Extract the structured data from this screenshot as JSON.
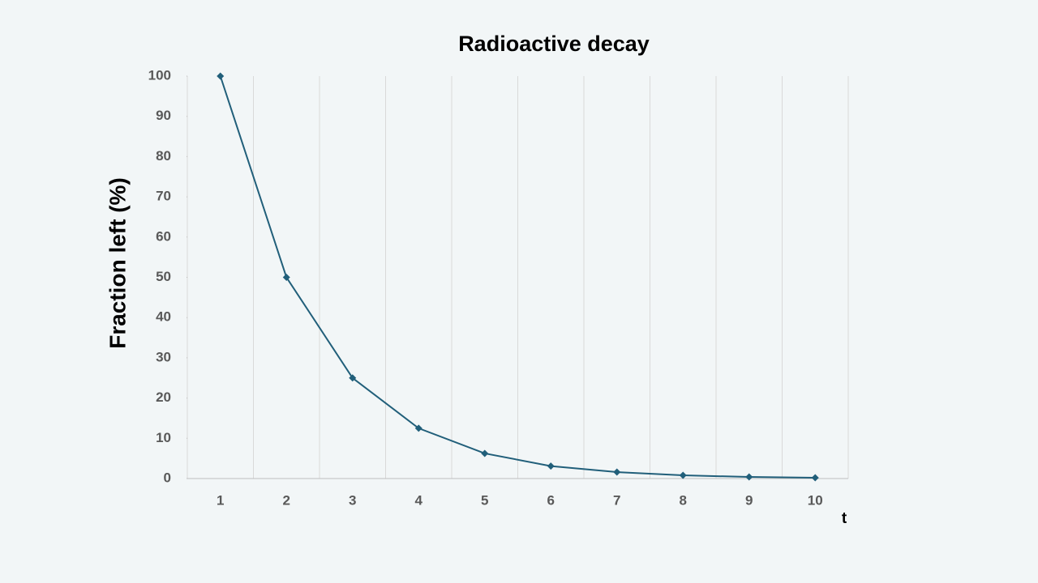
{
  "chart_data": {
    "type": "line",
    "title": "Radioactive decay",
    "x_label": "t",
    "y_label": "Fraction left (%)",
    "categories": [
      "1",
      "2",
      "3",
      "4",
      "5",
      "6",
      "7",
      "8",
      "9",
      "10"
    ],
    "values": [
      100,
      50,
      25,
      12.5,
      6.25,
      3.1,
      1.6,
      0.8,
      0.4,
      0.2
    ],
    "color": "#215f7a",
    "ylim": [
      0,
      100
    ],
    "yticks": [
      0,
      10,
      20,
      30,
      40,
      50,
      60,
      70,
      80,
      90,
      100
    ],
    "grid": "x"
  }
}
